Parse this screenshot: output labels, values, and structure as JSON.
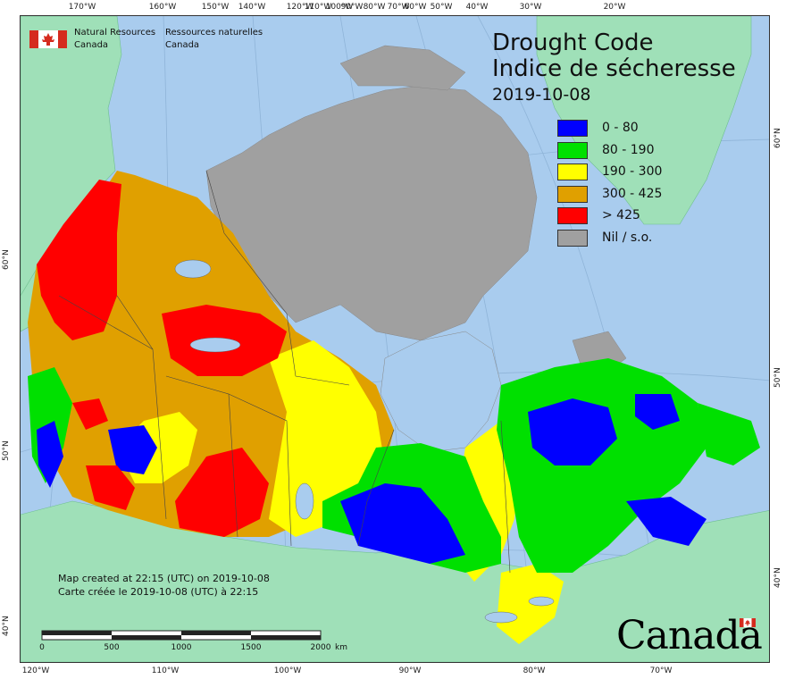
{
  "agency": {
    "en_line1": "Natural Resources",
    "en_line2": "Canada",
    "fr_line1": "Ressources naturelles",
    "fr_line2": "Canada"
  },
  "title": {
    "en": "Drought Code",
    "fr": "Indice de sécheresse",
    "date": "2019-10-08"
  },
  "legend": [
    {
      "label": "0 - 80",
      "color": "#0000ff"
    },
    {
      "label": "80 - 190",
      "color": "#00e000"
    },
    {
      "label": "190 - 300",
      "color": "#ffff00"
    },
    {
      "label": "300 - 425",
      "color": "#e0a000"
    },
    {
      "label": "> 425",
      "color": "#ff0000"
    },
    {
      "label": "Nil / s.o.",
      "color": "#a0a0a0"
    }
  ],
  "credits": {
    "en": "Map created at 22:15 (UTC) on 2019-10-08",
    "fr": "Carte créée le 2019-10-08 (UTC) à 22:15"
  },
  "scale_bar": {
    "labels": [
      "0",
      "500",
      "1000",
      "1500",
      "2000"
    ],
    "unit": "km"
  },
  "wordmark": "Canada",
  "graticule": {
    "top": [
      "170°W",
      "160°W",
      "150°W",
      "140°W",
      "120°W",
      "110°W",
      "100°W",
      "90°W",
      "80°W",
      "70°W",
      "60°W",
      "50°W",
      "40°W",
      "30°W",
      "20°W"
    ],
    "bottom": [
      "120°W",
      "110°W",
      "100°W",
      "90°W",
      "80°W",
      "70°W"
    ],
    "left": [
      "60°N",
      "50°N",
      "40°N"
    ],
    "right": [
      "60°N",
      "50°N",
      "40°N"
    ]
  },
  "colors": {
    "water": "#a9ccee",
    "foreign_land": "#9fe0b8",
    "nodata": "#a0a0a0",
    "dc_0_80": "#0000ff",
    "dc_80_190": "#00e000",
    "dc_190_300": "#ffff00",
    "dc_300_425": "#e0a000",
    "dc_425": "#ff0000"
  }
}
